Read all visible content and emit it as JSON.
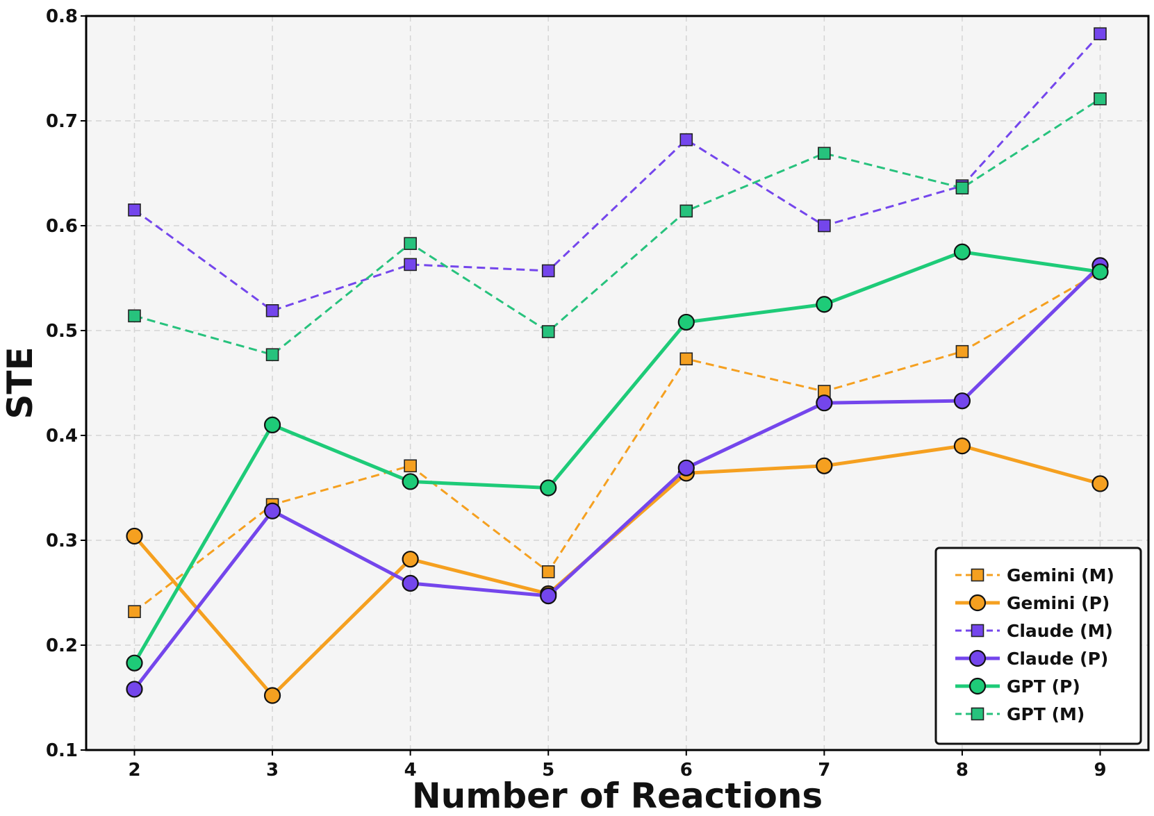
{
  "chart_data": {
    "type": "line",
    "title": "",
    "xlabel": "Number of Reactions",
    "ylabel": "STE",
    "x": [
      2,
      3,
      4,
      5,
      6,
      7,
      8,
      9
    ],
    "xlim": [
      1.65,
      9.35
    ],
    "ylim": [
      0.1,
      0.8
    ],
    "xticks": [
      "2",
      "3",
      "4",
      "5",
      "6",
      "7",
      "8",
      "9"
    ],
    "yticks": [
      "0.1",
      "0.2",
      "0.3",
      "0.4",
      "0.5",
      "0.6",
      "0.7",
      "0.8"
    ],
    "grid": true,
    "legend_position": "bottom-right",
    "series": [
      {
        "name": "Gemini (M)",
        "color": "#f5a020",
        "line": "dashed",
        "marker": "square",
        "values": [
          0.232,
          0.334,
          0.371,
          0.27,
          0.473,
          0.442,
          0.48,
          0.556
        ]
      },
      {
        "name": "Gemini (P)",
        "color": "#f5a020",
        "line": "solid",
        "marker": "circle",
        "values": [
          0.304,
          0.152,
          0.282,
          0.249,
          0.364,
          0.371,
          0.39,
          0.354
        ]
      },
      {
        "name": "Claude (M)",
        "color": "#7446ec",
        "line": "dashed",
        "marker": "square",
        "values": [
          0.615,
          0.519,
          0.563,
          0.557,
          0.682,
          0.6,
          0.638,
          0.783
        ]
      },
      {
        "name": "Claude (P)",
        "color": "#7446ec",
        "line": "solid",
        "marker": "circle",
        "values": [
          0.158,
          0.328,
          0.259,
          0.247,
          0.369,
          0.431,
          0.433,
          0.562
        ]
      },
      {
        "name": "GPT (P)",
        "color": "#1ecb78",
        "line": "solid",
        "marker": "circle",
        "values": [
          0.183,
          0.41,
          0.356,
          0.35,
          0.508,
          0.525,
          0.575,
          0.556
        ]
      },
      {
        "name": "GPT (M)",
        "color": "#27c27d",
        "line": "dashed",
        "marker": "square",
        "values": [
          0.514,
          0.477,
          0.583,
          0.499,
          0.614,
          0.669,
          0.636,
          0.721
        ]
      }
    ]
  }
}
